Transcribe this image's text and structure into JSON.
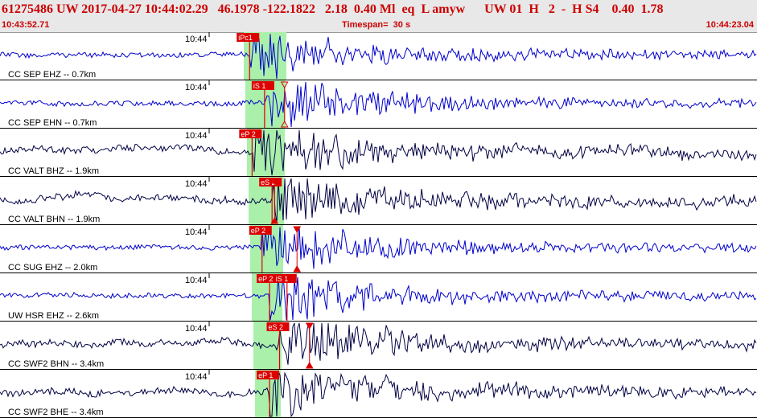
{
  "header": {
    "title": "61275486 UW 2017-04-27 10:44:02.29   46.1978 -122.1822   2.18  0.40 Ml  eq  L amyw      UW 01  H   2  -  H S4    0.40  1.78",
    "start_time": "10:43:52.71",
    "timespan": "Timespan=  30 s",
    "end_time": "10:44:23.04"
  },
  "minute_label": "10:44",
  "colors": {
    "pick_box": "#dd0000",
    "pick_line": "#dd0000",
    "window": "#aaf0aa",
    "blue_trace": "#0000cc",
    "dark_trace": "#000044",
    "separator": "#000000"
  },
  "traces": [
    {
      "label": "CC SEP EHZ -- 0.7km",
      "color": "blue",
      "picks": [
        {
          "text": "iPc1",
          "t": 10.0
        }
      ]
    },
    {
      "label": "CC SEP EHN -- 0.7km",
      "color": "blue",
      "picks": [
        {
          "text": "iS 1",
          "t": 10.6
        }
      ],
      "marker": {
        "t": 11.4,
        "style": "hollow"
      }
    },
    {
      "label": "CC VALT BHZ -- 1.9km",
      "color": "dark",
      "picks": [
        {
          "text": "eP 2",
          "t": 10.1
        }
      ]
    },
    {
      "label": "CC VALT BHN -- 1.9km",
      "color": "dark",
      "picks": [
        {
          "text": "eS 2",
          "t": 10.9
        }
      ],
      "marker": {
        "t": 11.0,
        "style": "filled"
      }
    },
    {
      "label": "CC SUG EHZ -- 2.0km",
      "color": "blue",
      "picks": [
        {
          "text": "eP 2",
          "t": 10.5
        }
      ],
      "marker": {
        "t": 11.9,
        "style": "filled"
      }
    },
    {
      "label": "UW HSR EHZ -- 2.6km",
      "color": "blue",
      "picks": [
        {
          "text": "eP 2",
          "t": 10.8
        },
        {
          "text": "iS 1",
          "t": 11.5
        }
      ]
    },
    {
      "label": "CC SWF2 BHN -- 3.4km",
      "color": "dark",
      "picks": [
        {
          "text": "eS 2",
          "t": 11.2
        }
      ],
      "marker": {
        "t": 12.4,
        "style": "filled"
      }
    },
    {
      "label": "CC SWF2 BHE -- 3.4km",
      "color": "dark",
      "picks": [
        {
          "text": "eP 1",
          "t": 10.8
        }
      ]
    }
  ]
}
